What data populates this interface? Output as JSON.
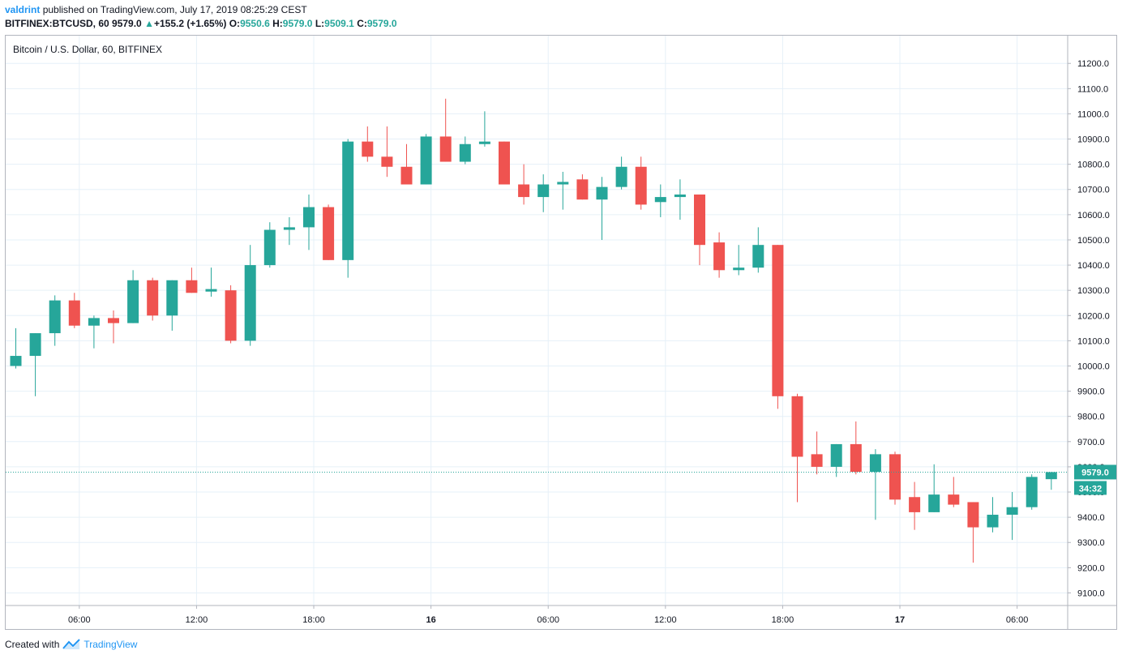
{
  "header": {
    "user": "valdrint",
    "published_text": "published on TradingView.com, July 17, 2019 08:25:29 CEST",
    "symbol": "BITFINEX:BTCUSD, 60",
    "last": "9579.0",
    "change": "+155.2 (+1.65%)",
    "o_label": "O:",
    "o_value": "9550.6",
    "h_label": "H:",
    "h_value": "9579.0",
    "l_label": "L:",
    "l_value": "9509.1",
    "c_label": "C:",
    "c_value": "9579.0"
  },
  "footer": {
    "created_with": "Created with",
    "brand": "TradingView"
  },
  "colors": {
    "up": "#26a69a",
    "down": "#ef5350",
    "grid": "#e6f0f8",
    "axis_text": "#131722",
    "price_line": "#26a69a"
  },
  "chart_data": {
    "type": "candlestick",
    "title": "Bitcoin / U.S. Dollar, 60, BITFINEX",
    "y_range": [
      9050,
      11310
    ],
    "y_ticks": [
      9100,
      9200,
      9300,
      9400,
      9500,
      9600,
      9700,
      9800,
      9900,
      10000,
      10100,
      10200,
      10300,
      10400,
      10500,
      10600,
      10700,
      10800,
      10900,
      11000,
      11100,
      11200
    ],
    "y_tick_labels": [
      "9100.0",
      "9200.0",
      "9300.0",
      "9400.0",
      "9500.0",
      "9600.0",
      "9700.0",
      "9800.0",
      "9900.0",
      "10000.0",
      "10100.0",
      "10200.0",
      "10300.0",
      "10400.0",
      "10500.0",
      "10600.0",
      "10700.0",
      "10800.0",
      "10900.0",
      "11000.0",
      "11100.0",
      "11200.0"
    ],
    "x_ticks": [
      {
        "index": 3.25,
        "label": "06:00",
        "bold": false
      },
      {
        "index": 9.25,
        "label": "12:00",
        "bold": false
      },
      {
        "index": 15.25,
        "label": "18:00",
        "bold": false
      },
      {
        "index": 21.25,
        "label": "16",
        "bold": true
      },
      {
        "index": 27.25,
        "label": "06:00",
        "bold": false
      },
      {
        "index": 33.25,
        "label": "12:00",
        "bold": false
      },
      {
        "index": 39.25,
        "label": "18:00",
        "bold": false
      },
      {
        "index": 45.25,
        "label": "17",
        "bold": true
      },
      {
        "index": 51.25,
        "label": "06:00",
        "bold": false
      }
    ],
    "last_price": 9579.0,
    "last_price_label": "9579.0",
    "countdown_label": "34:32",
    "candles": [
      {
        "o": 10000,
        "h": 10150,
        "l": 9990,
        "c": 10040
      },
      {
        "o": 10040,
        "h": 10130,
        "l": 9880,
        "c": 10130
      },
      {
        "o": 10130,
        "h": 10280,
        "l": 10080,
        "c": 10260
      },
      {
        "o": 10260,
        "h": 10290,
        "l": 10150,
        "c": 10160
      },
      {
        "o": 10160,
        "h": 10200,
        "l": 10070,
        "c": 10190
      },
      {
        "o": 10190,
        "h": 10220,
        "l": 10090,
        "c": 10170
      },
      {
        "o": 10170,
        "h": 10380,
        "l": 10170,
        "c": 10340
      },
      {
        "o": 10340,
        "h": 10350,
        "l": 10180,
        "c": 10200
      },
      {
        "o": 10200,
        "h": 10340,
        "l": 10140,
        "c": 10340
      },
      {
        "o": 10340,
        "h": 10390,
        "l": 10290,
        "c": 10290
      },
      {
        "o": 10295,
        "h": 10390,
        "l": 10275,
        "c": 10305
      },
      {
        "o": 10300,
        "h": 10320,
        "l": 10090,
        "c": 10100
      },
      {
        "o": 10100,
        "h": 10480,
        "l": 10080,
        "c": 10400
      },
      {
        "o": 10400,
        "h": 10570,
        "l": 10390,
        "c": 10540
      },
      {
        "o": 10540,
        "h": 10590,
        "l": 10480,
        "c": 10550
      },
      {
        "o": 10550,
        "h": 10680,
        "l": 10460,
        "c": 10630
      },
      {
        "o": 10630,
        "h": 10640,
        "l": 10420,
        "c": 10420
      },
      {
        "o": 10420,
        "h": 10900,
        "l": 10350,
        "c": 10890
      },
      {
        "o": 10890,
        "h": 10950,
        "l": 10810,
        "c": 10830
      },
      {
        "o": 10830,
        "h": 10950,
        "l": 10750,
        "c": 10790
      },
      {
        "o": 10790,
        "h": 10880,
        "l": 10720,
        "c": 10720
      },
      {
        "o": 10720,
        "h": 10920,
        "l": 10720,
        "c": 10910
      },
      {
        "o": 10910,
        "h": 11060,
        "l": 10810,
        "c": 10810
      },
      {
        "o": 10810,
        "h": 10910,
        "l": 10800,
        "c": 10880
      },
      {
        "o": 10880,
        "h": 11010,
        "l": 10870,
        "c": 10890
      },
      {
        "o": 10890,
        "h": 10890,
        "l": 10720,
        "c": 10720
      },
      {
        "o": 10720,
        "h": 10800,
        "l": 10640,
        "c": 10670
      },
      {
        "o": 10670,
        "h": 10760,
        "l": 10610,
        "c": 10720
      },
      {
        "o": 10720,
        "h": 10770,
        "l": 10620,
        "c": 10730
      },
      {
        "o": 10740,
        "h": 10760,
        "l": 10660,
        "c": 10660
      },
      {
        "o": 10660,
        "h": 10750,
        "l": 10500,
        "c": 10710
      },
      {
        "o": 10710,
        "h": 10830,
        "l": 10700,
        "c": 10790
      },
      {
        "o": 10790,
        "h": 10830,
        "l": 10620,
        "c": 10640
      },
      {
        "o": 10650,
        "h": 10720,
        "l": 10590,
        "c": 10670
      },
      {
        "o": 10670,
        "h": 10740,
        "l": 10580,
        "c": 10680
      },
      {
        "o": 10680,
        "h": 10680,
        "l": 10400,
        "c": 10480
      },
      {
        "o": 10490,
        "h": 10530,
        "l": 10350,
        "c": 10380
      },
      {
        "o": 10380,
        "h": 10480,
        "l": 10360,
        "c": 10390
      },
      {
        "o": 10390,
        "h": 10550,
        "l": 10370,
        "c": 10480
      },
      {
        "o": 10480,
        "h": 10480,
        "l": 9830,
        "c": 9880
      },
      {
        "o": 9880,
        "h": 9890,
        "l": 9460,
        "c": 9640
      },
      {
        "o": 9650,
        "h": 9740,
        "l": 9570,
        "c": 9600
      },
      {
        "o": 9600,
        "h": 9690,
        "l": 9560,
        "c": 9690
      },
      {
        "o": 9690,
        "h": 9780,
        "l": 9570,
        "c": 9580
      },
      {
        "o": 9580,
        "h": 9670,
        "l": 9390,
        "c": 9650
      },
      {
        "o": 9650,
        "h": 9660,
        "l": 9450,
        "c": 9470
      },
      {
        "o": 9480,
        "h": 9540,
        "l": 9350,
        "c": 9420
      },
      {
        "o": 9420,
        "h": 9610,
        "l": 9420,
        "c": 9490
      },
      {
        "o": 9490,
        "h": 9560,
        "l": 9440,
        "c": 9450
      },
      {
        "o": 9460,
        "h": 9460,
        "l": 9220,
        "c": 9360
      },
      {
        "o": 9360,
        "h": 9480,
        "l": 9340,
        "c": 9410
      },
      {
        "o": 9410,
        "h": 9500,
        "l": 9310,
        "c": 9440
      },
      {
        "o": 9440,
        "h": 9570,
        "l": 9430,
        "c": 9560
      },
      {
        "o": 9551,
        "h": 9579,
        "l": 9509,
        "c": 9579
      }
    ]
  }
}
